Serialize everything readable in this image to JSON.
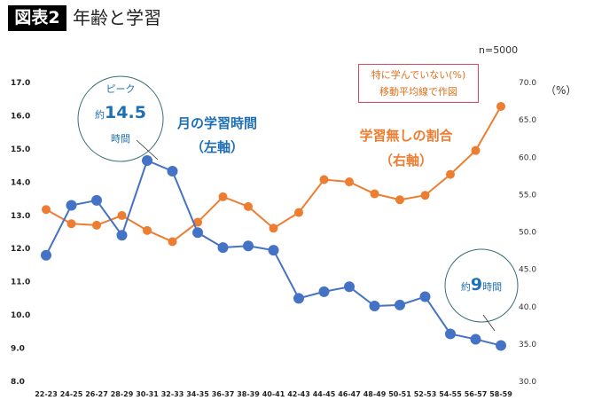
{
  "header": {
    "figure_label": "図表2",
    "title": "年齢と学習",
    "sample": "n=5000"
  },
  "right_unit": "（%）",
  "note": {
    "line1": "特に学んでいない(%)",
    "line2": "移動平均線で作図"
  },
  "annotations": {
    "time_label_1": "月の学習時間",
    "time_label_2": "（左軸）",
    "none_label_1": "学習無しの割合",
    "none_label_2": "（右軸）",
    "peak_top": "ピーク",
    "peak_prefix": "約",
    "peak_value": "14.5",
    "peak_unit": "時間",
    "end_prefix": "約",
    "end_value": "9",
    "end_unit": "時間"
  },
  "chart_data": {
    "type": "line",
    "categories": [
      "22-23",
      "24-25",
      "26-27",
      "28-29",
      "30-31",
      "32-33",
      "34-35",
      "36-37",
      "38-39",
      "40-41",
      "42-43",
      "44-45",
      "46-47",
      "48-49",
      "50-51",
      "52-53",
      "54-55",
      "56-57",
      "58-59"
    ],
    "left_axis": {
      "ylim": [
        8.0,
        17.0
      ],
      "ticks": [
        "17.0",
        "16.0",
        "15.0",
        "14.0",
        "13.0",
        "12.0",
        "11.0",
        "10.0",
        "9.0",
        "8.0"
      ]
    },
    "right_axis": {
      "ylim": [
        30.0,
        70.0
      ],
      "ticks": [
        "70.0",
        "65.0",
        "60.0",
        "55.0",
        "50.0",
        "45.0",
        "40.0",
        "35.0",
        "30.0"
      ],
      "unit": "%"
    },
    "grid": false,
    "series": [
      {
        "name": "月の学習時間（左軸）",
        "axis": "left",
        "color": "#4472c4",
        "values": [
          11.8,
          13.3,
          13.45,
          12.4,
          14.65,
          14.33,
          12.48,
          12.03,
          12.08,
          11.95,
          10.5,
          10.7,
          10.85,
          10.27,
          10.3,
          10.55,
          9.43,
          9.27,
          9.08
        ]
      },
      {
        "name": "学習無しの割合（右軸）",
        "axis": "right",
        "color": "#ed7d31",
        "values": [
          53.0,
          51.1,
          50.9,
          52.2,
          50.2,
          48.7,
          51.3,
          54.7,
          53.4,
          50.5,
          52.6,
          57.0,
          56.7,
          55.1,
          54.3,
          54.9,
          57.7,
          60.9,
          66.8
        ]
      }
    ]
  }
}
